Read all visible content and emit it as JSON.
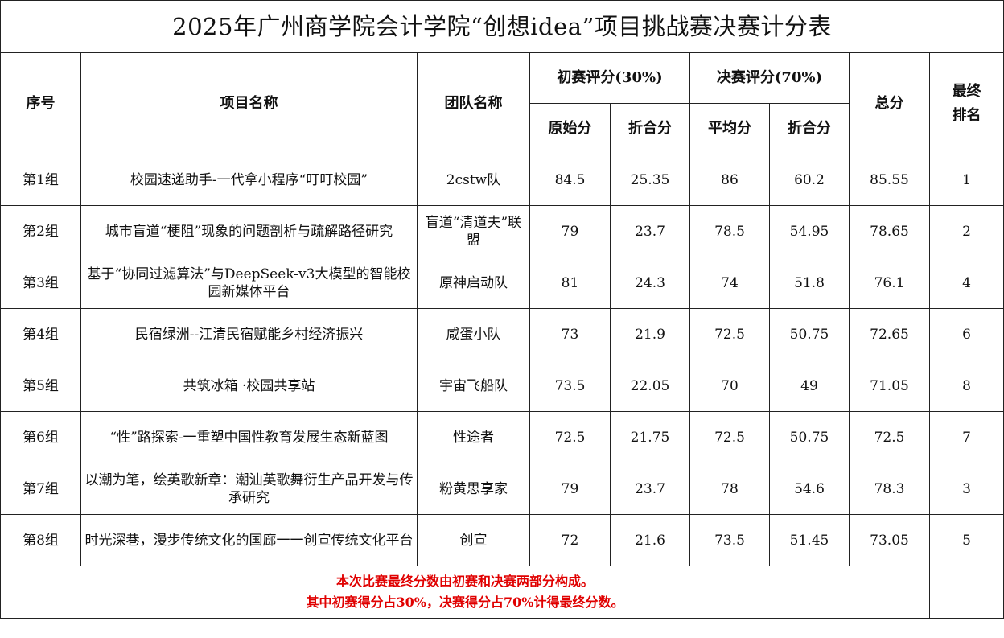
{
  "title": "2025年广州商学院会计学院“创想idea”项目挑战赛决赛计分表",
  "headers": {
    "index": "序号",
    "project": "项目名称",
    "team": "团队名称",
    "prelim": "初赛评分(30%)",
    "final": "决赛评分(70%)",
    "prelim_raw": "原始分",
    "prelim_weighted": "折合分",
    "final_avg": "平均分",
    "final_weighted": "折合分",
    "total": "总分",
    "rank": "最终排名"
  },
  "rows": [
    {
      "group": "第1组",
      "project": "校园速递助手-一代拿小程序“叮叮校园”",
      "team": "2cstw队",
      "prelim_raw": "84.5",
      "prelim_weighted": "25.35",
      "final_avg": "86",
      "final_weighted": "60.2",
      "total": "85.55",
      "rank": "1"
    },
    {
      "group": "第2组",
      "project": "城市盲道“梗阻”现象的问题剖析与疏解路径研究",
      "team": "盲道“清道夫”联盟",
      "prelim_raw": "79",
      "prelim_weighted": "23.7",
      "final_avg": "78.5",
      "final_weighted": "54.95",
      "total": "78.65",
      "rank": "2"
    },
    {
      "group": "第3组",
      "project": "基于“协同过滤算法”与DeepSeek-v3大模型的智能校园新媒体平台",
      "team": "原神启动队",
      "prelim_raw": "81",
      "prelim_weighted": "24.3",
      "final_avg": "74",
      "final_weighted": "51.8",
      "total": "76.1",
      "rank": "4"
    },
    {
      "group": "第4组",
      "project": "民宿绿洲--江清民宿赋能乡村经济振兴",
      "team": "咸蛋小队",
      "prelim_raw": "73",
      "prelim_weighted": "21.9",
      "final_avg": "72.5",
      "final_weighted": "50.75",
      "total": "72.65",
      "rank": "6"
    },
    {
      "group": "第5组",
      "project": "共筑冰箱 ·校园共享站",
      "team": "宇宙飞船队",
      "prelim_raw": "73.5",
      "prelim_weighted": "22.05",
      "final_avg": "70",
      "final_weighted": "49",
      "total": "71.05",
      "rank": "8"
    },
    {
      "group": "第6组",
      "project": "“性”路探索-一重塑中国性教育发展生态新蓝图",
      "team": "性途者",
      "prelim_raw": "72.5",
      "prelim_weighted": "21.75",
      "final_avg": "72.5",
      "final_weighted": "50.75",
      "total": "72.5",
      "rank": "7"
    },
    {
      "group": "第7组",
      "project": "以潮为笔，绘英歌新章：潮汕英歌舞衍生产品开发与传承研究",
      "team": "粉黄思享家",
      "prelim_raw": "79",
      "prelim_weighted": "23.7",
      "final_avg": "78",
      "final_weighted": "54.6",
      "total": "78.3",
      "rank": "3"
    },
    {
      "group": "第8组",
      "project": "时光深巷，漫步传统文化的国廊一一创宣传统文化平台",
      "team": "创宣",
      "prelim_raw": "72",
      "prelim_weighted": "21.6",
      "final_avg": "73.5",
      "final_weighted": "51.45",
      "total": "73.05",
      "rank": "5"
    }
  ],
  "note": {
    "line1": "本次比赛最终分数由初赛和决赛两部分构成。",
    "line2": "其中初赛得分占30%，决赛得分占70%计得最终分数。",
    "color": "#e00000"
  }
}
